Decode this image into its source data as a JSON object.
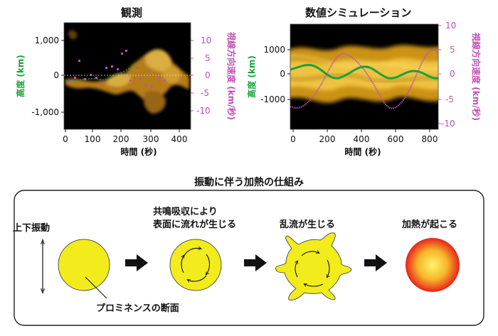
{
  "panels": {
    "observation": {
      "title": "観測",
      "ylabel_left": "高度 (km)",
      "ylabel_right": "視線方向速度 (km/秒)",
      "xlabel": "時間 (秒)",
      "left_ticks": [
        "1,000",
        "0",
        "-1,000"
      ],
      "right_ticks": [
        "10",
        "5",
        "0",
        "-5",
        "-10"
      ],
      "x_ticks": [
        "0",
        "100",
        "200",
        "300",
        "400"
      ]
    },
    "simulation": {
      "title": "数値シミュレーション",
      "ylabel_left": "高度 (km)",
      "ylabel_right": "視線方向速度 (km/秒)",
      "xlabel": "時間 (秒)",
      "left_ticks": [
        "1000",
        "0",
        "-1000"
      ],
      "right_ticks": [
        "10",
        "5",
        "0",
        "-5",
        "-10"
      ],
      "x_ticks": [
        "0",
        "200",
        "400",
        "600",
        "800"
      ]
    }
  },
  "colors": {
    "height": "#1aa33a",
    "velocity": "#c24fb8",
    "prominence": "#f2ec1c",
    "heated_core": "#fff46a",
    "heated_edge": "#e8221c"
  },
  "mechanism": {
    "title": "振動に伴う加熱の仕組み",
    "steps": [
      {
        "label": "上下振動"
      },
      {
        "label_line1": "共鳴吸収により",
        "label_line2": "表面に流れが生じる"
      },
      {
        "label": "乱流が生じる"
      },
      {
        "label": "加熱が起こる"
      }
    ],
    "cross_section_label": "プロミネンスの断面"
  }
}
